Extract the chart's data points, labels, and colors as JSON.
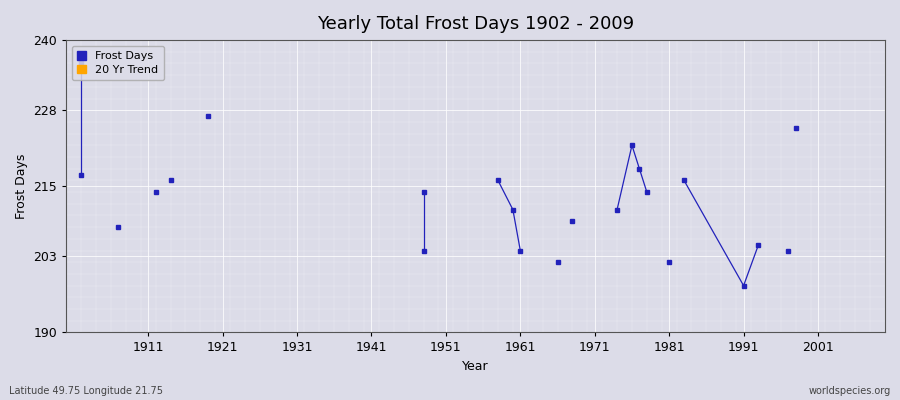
{
  "title": "Yearly Total Frost Days 1902 - 2009",
  "xlabel": "Year",
  "ylabel": "Frost Days",
  "xlim": [
    1900,
    2010
  ],
  "ylim": [
    190,
    240
  ],
  "yticks": [
    190,
    203,
    215,
    228,
    240
  ],
  "xticks": [
    1911,
    1921,
    1931,
    1941,
    1951,
    1961,
    1971,
    1981,
    1991,
    2001
  ],
  "background_color": "#dcdce8",
  "plot_bg_color": "#dcdce8",
  "line_color": "#2222bb",
  "marker_color": "#2222bb",
  "trend_color": "#ffa500",
  "title_fontsize": 13,
  "axis_label_fontsize": 9,
  "tick_fontsize": 9,
  "footer_left": "Latitude 49.75 Longitude 21.75",
  "footer_right": "worldspecies.org",
  "line_segments": [
    [
      [
        1902,
        236
      ],
      [
        1902,
        217
      ]
    ],
    [
      [
        1948,
        214
      ],
      [
        1948,
        204
      ]
    ],
    [
      [
        1958,
        216
      ],
      [
        1960,
        211
      ],
      [
        1961,
        204
      ]
    ],
    [
      [
        1974,
        211
      ],
      [
        1976,
        222
      ],
      [
        1977,
        218
      ],
      [
        1978,
        214
      ]
    ],
    [
      [
        1983,
        216
      ],
      [
        1991,
        198
      ],
      [
        1993,
        205
      ]
    ]
  ],
  "isolated_points": [
    [
      1907,
      208
    ],
    [
      1912,
      214
    ],
    [
      1914,
      216
    ],
    [
      1919,
      227
    ],
    [
      1966,
      202
    ],
    [
      1968,
      209
    ],
    [
      1981,
      202
    ],
    [
      1997,
      204
    ],
    [
      1998,
      225
    ]
  ]
}
